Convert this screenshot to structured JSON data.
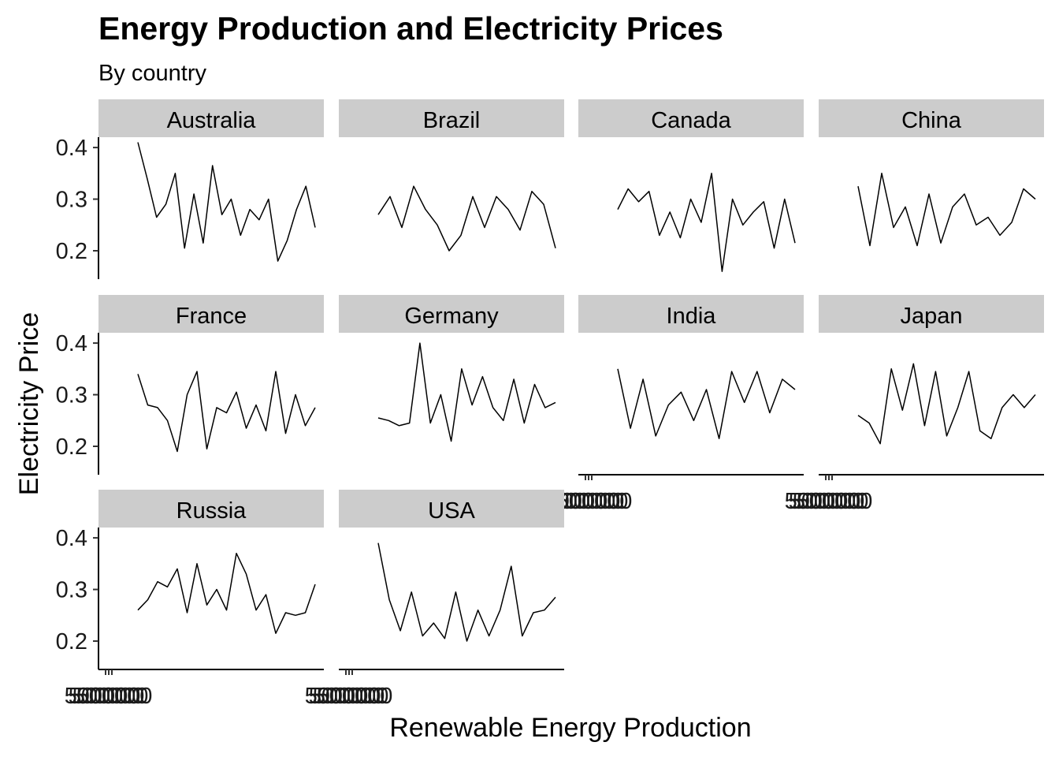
{
  "chart_data": {
    "type": "line",
    "title": "Energy Production and Electricity Prices",
    "subtitle": "By country",
    "xlabel": "Renewable Energy Production",
    "ylabel": "Electricity Price",
    "ylim": [
      0.145,
      0.42
    ],
    "y_ticks": [
      0.2,
      0.3,
      0.4
    ],
    "y_tick_labels": [
      "0.2",
      "0.3",
      "0.4"
    ],
    "x_tick_label": "500000",
    "grid": false,
    "panels": [
      {
        "country": "Australia",
        "y": [
          0.41,
          0.34,
          0.265,
          0.29,
          0.35,
          0.205,
          0.31,
          0.215,
          0.365,
          0.27,
          0.3,
          0.23,
          0.28,
          0.26,
          0.3,
          0.18,
          0.22,
          0.28,
          0.325,
          0.245
        ]
      },
      {
        "country": "Brazil",
        "y": [
          0.27,
          0.305,
          0.245,
          0.325,
          0.28,
          0.25,
          0.2,
          0.23,
          0.305,
          0.245,
          0.305,
          0.28,
          0.24,
          0.315,
          0.29,
          0.205
        ]
      },
      {
        "country": "Canada",
        "y": [
          0.28,
          0.32,
          0.295,
          0.315,
          0.23,
          0.275,
          0.225,
          0.3,
          0.255,
          0.35,
          0.16,
          0.3,
          0.25,
          0.275,
          0.295,
          0.205,
          0.3,
          0.215
        ]
      },
      {
        "country": "China",
        "y": [
          0.325,
          0.21,
          0.35,
          0.245,
          0.285,
          0.21,
          0.31,
          0.215,
          0.285,
          0.31,
          0.25,
          0.265,
          0.23,
          0.255,
          0.32,
          0.3
        ]
      },
      {
        "country": "France",
        "y": [
          0.34,
          0.28,
          0.275,
          0.25,
          0.19,
          0.3,
          0.345,
          0.195,
          0.275,
          0.265,
          0.305,
          0.235,
          0.28,
          0.23,
          0.345,
          0.225,
          0.3,
          0.24,
          0.275
        ]
      },
      {
        "country": "Germany",
        "y": [
          0.255,
          0.25,
          0.24,
          0.245,
          0.4,
          0.245,
          0.3,
          0.21,
          0.35,
          0.28,
          0.335,
          0.275,
          0.25,
          0.33,
          0.245,
          0.32,
          0.275,
          0.285
        ]
      },
      {
        "country": "India",
        "y": [
          0.35,
          0.235,
          0.33,
          0.22,
          0.28,
          0.305,
          0.25,
          0.31,
          0.215,
          0.345,
          0.285,
          0.345,
          0.265,
          0.33,
          0.31
        ]
      },
      {
        "country": "Japan",
        "y": [
          0.26,
          0.245,
          0.205,
          0.35,
          0.27,
          0.36,
          0.24,
          0.345,
          0.22,
          0.275,
          0.345,
          0.23,
          0.215,
          0.275,
          0.3,
          0.275,
          0.3
        ]
      },
      {
        "country": "Russia",
        "y": [
          0.26,
          0.28,
          0.315,
          0.305,
          0.34,
          0.255,
          0.35,
          0.27,
          0.3,
          0.26,
          0.37,
          0.33,
          0.26,
          0.29,
          0.215,
          0.255,
          0.25,
          0.255,
          0.31
        ]
      },
      {
        "country": "USA",
        "y": [
          0.39,
          0.28,
          0.22,
          0.295,
          0.21,
          0.235,
          0.205,
          0.295,
          0.2,
          0.26,
          0.21,
          0.26,
          0.345,
          0.21,
          0.255,
          0.26,
          0.285
        ]
      }
    ]
  }
}
